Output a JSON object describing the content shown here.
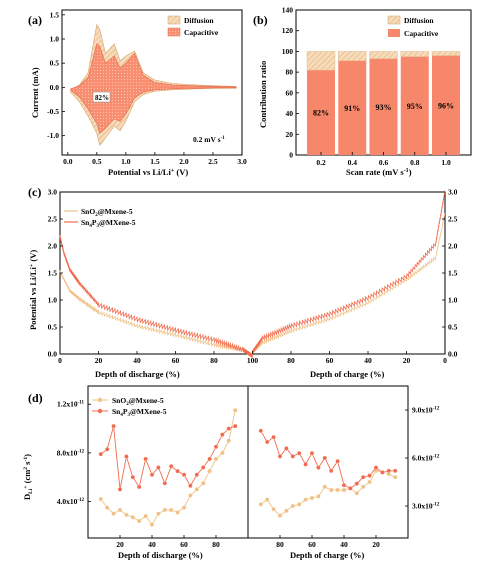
{
  "colors": {
    "diffusion": "#f1cfa6",
    "capacitive": "#f7876a",
    "sno2": "#f0c084",
    "sn4p3": "#f06b4e",
    "axis": "#000000"
  },
  "panels": {
    "a": {
      "label": "(a)",
      "xlabel_main": "Potential vs Li/Li",
      "xlabel_sup": "+",
      "xlabel_tail": " (V)",
      "ylabel": "Current (mA)",
      "legend": [
        "Diffusion",
        "Capacitive"
      ],
      "annotation": "82%",
      "rate_main": "0.2 mV s",
      "rate_sup": "-1",
      "xticks": [
        "0.0",
        "0.5",
        "1.0",
        "1.5",
        "2.0",
        "2.5",
        "3.0"
      ],
      "yticks": [
        "1.5",
        "1.0",
        "0.5",
        "0.0",
        "-0.5",
        "-1.0"
      ]
    },
    "b": {
      "label": "(b)",
      "xlabel_main": "Scan rate (mV s",
      "xlabel_sup": "-1",
      "xlabel_tail": ")",
      "ylabel": "Contribution ratio",
      "legend": [
        "Diffusion",
        "Capacitive"
      ],
      "yticks": [
        "0",
        "20",
        "40",
        "60",
        "80",
        "100",
        "120",
        "140"
      ]
    },
    "c": {
      "label": "(c)",
      "ylabel_main": "Potential vs Li/Li",
      "ylabel_sup": "+",
      "ylabel_tail": " (V)",
      "xlabel_left": "Depth of discharge (%)",
      "xlabel_right": "Depth of charge (%)",
      "legend_sno2_main": "SnO",
      "legend_sno2_sub": "2",
      "legend_sno2_tail": "@Mxene-5",
      "legend_sn4p3_a": "Sn",
      "legend_sn4p3_s1": "4",
      "legend_sn4p3_b": "P",
      "legend_sn4p3_s2": "3",
      "legend_sn4p3_tail": "@MXene-5",
      "yticks": [
        "0.0",
        "0.5",
        "1.0",
        "1.5",
        "2.0",
        "2.5",
        "3.0"
      ],
      "xticks": [
        "0",
        "20",
        "40",
        "60",
        "80",
        "100",
        "80",
        "60",
        "40",
        "20",
        "0"
      ]
    },
    "d": {
      "label": "(d)",
      "ylabel_main": "D",
      "ylabel_sub": "Li",
      "ylabel_sup1": "+",
      "ylabel_tail": " (cm",
      "ylabel_sup2": "2",
      "ylabel_tail2": " s",
      "ylabel_sup3": "-1",
      "ylabel_end": ")",
      "xlabel_left": "Depth of discharge (%)",
      "xlabel_right": "Depth of charge (%)",
      "legend_sno2": "SnO2@Mxene-5",
      "legend_sn4p3": "Sn4P3@MXene-5",
      "yticks_left": [
        "4.0x10",
        "8.0x10",
        "1.2x10"
      ],
      "yticks_left_exp": [
        "-12",
        "-12",
        "-11"
      ],
      "yticks_right": [
        "3.0x10",
        "6.0x10",
        "9.0x10"
      ],
      "yticks_right_exp": [
        "-12",
        "-12",
        "-12"
      ],
      "xticks_left": [
        "20",
        "40",
        "60",
        "80"
      ],
      "xticks_right": [
        "80",
        "60",
        "40",
        "20"
      ]
    }
  },
  "chart_data": [
    {
      "panel": "a",
      "type": "area",
      "x_range": [
        -0.1,
        3.0
      ],
      "y_range": [
        -1.4,
        1.6
      ],
      "series": [
        {
          "name": "Diffusion",
          "x": [
            0.05,
            0.2,
            0.35,
            0.5,
            0.55,
            0.65,
            0.8,
            0.9,
            1.0,
            1.15,
            1.3,
            1.5,
            1.8,
            2.2,
            2.6,
            2.9
          ],
          "upper": [
            -0.05,
            0.05,
            0.3,
            1.3,
            1.2,
            0.7,
            0.9,
            0.55,
            0.65,
            0.75,
            0.3,
            0.15,
            0.08,
            0.05,
            0.03,
            0.02
          ],
          "lower": [
            -0.1,
            -0.3,
            -0.6,
            -0.95,
            -1.2,
            -1.05,
            -0.8,
            -0.9,
            -0.7,
            -0.3,
            -0.15,
            -0.08,
            -0.05,
            -0.03,
            -0.02,
            -0.02
          ]
        },
        {
          "name": "Capacitive",
          "x": [
            0.05,
            0.2,
            0.35,
            0.5,
            0.55,
            0.65,
            0.8,
            0.9,
            1.0,
            1.15,
            1.3,
            1.5,
            1.8,
            2.2,
            2.6,
            2.9
          ],
          "upper": [
            -0.03,
            0.03,
            0.2,
            0.9,
            0.85,
            0.5,
            0.65,
            0.4,
            0.5,
            0.7,
            0.25,
            0.1,
            0.05,
            0.03,
            0.02,
            0.01
          ],
          "lower": [
            -0.06,
            -0.2,
            -0.45,
            -0.75,
            -0.95,
            -0.85,
            -0.65,
            -0.7,
            -0.55,
            -0.22,
            -0.1,
            -0.05,
            -0.03,
            -0.02,
            -0.01,
            -0.01
          ]
        }
      ]
    },
    {
      "panel": "b",
      "type": "bar",
      "categories": [
        "0.2",
        "0.4",
        "0.6",
        "0.8",
        "1.0"
      ],
      "ylim": [
        0,
        140
      ],
      "series": [
        {
          "name": "Capacitive",
          "values": [
            82,
            91,
            93,
            95,
            96
          ]
        },
        {
          "name": "Diffusion",
          "values": [
            18,
            9,
            7,
            5,
            4
          ]
        }
      ],
      "labels": [
        "82%",
        "91%",
        "93%",
        "95%",
        "96%"
      ]
    },
    {
      "panel": "c",
      "type": "line",
      "xlim": [
        0,
        200
      ],
      "ylim": [
        0,
        3.0
      ],
      "series": [
        {
          "name": "SnO2@Mxene-5",
          "x": [
            0,
            5,
            10,
            20,
            40,
            60,
            80,
            95,
            100,
            105,
            120,
            140,
            160,
            180,
            195,
            200
          ],
          "y": [
            1.55,
            1.2,
            1.05,
            0.8,
            0.55,
            0.38,
            0.2,
            0.1,
            0.0,
            0.18,
            0.4,
            0.62,
            0.92,
            1.35,
            1.75,
            2.6
          ]
        },
        {
          "name": "Sn4P3@MXene-5",
          "x": [
            0,
            2,
            5,
            10,
            20,
            40,
            60,
            80,
            95,
            100,
            105,
            120,
            140,
            160,
            180,
            195,
            200
          ],
          "y": [
            2.2,
            1.9,
            1.6,
            1.35,
            0.95,
            0.68,
            0.48,
            0.3,
            0.12,
            0.0,
            0.25,
            0.48,
            0.7,
            1.0,
            1.4,
            2.0,
            3.0
          ]
        }
      ]
    },
    {
      "panel": "d",
      "type": "scatter",
      "series": [
        {
          "name": "SnO2@Mxene-5",
          "side": "discharge",
          "x": [
            8,
            12,
            16,
            20,
            24,
            28,
            32,
            36,
            40,
            44,
            48,
            52,
            56,
            60,
            64,
            68,
            72,
            76,
            80,
            84,
            88,
            92
          ],
          "y": [
            4.2,
            3.5,
            3.0,
            3.3,
            2.9,
            2.7,
            2.4,
            2.8,
            2.1,
            3.0,
            3.3,
            3.3,
            3.1,
            3.5,
            4.5,
            5.0,
            5.5,
            6.5,
            7.5,
            8.0,
            9.0,
            11.5
          ]
        },
        {
          "name": "Sn4P3@MXene-5",
          "side": "discharge",
          "x": [
            8,
            12,
            16,
            20,
            24,
            28,
            32,
            36,
            40,
            44,
            48,
            52,
            56,
            60,
            64,
            68,
            72,
            76,
            80,
            84,
            88,
            92
          ],
          "y": [
            7.9,
            8.3,
            10.2,
            5.0,
            7.7,
            6.0,
            5.2,
            7.5,
            6.2,
            6.8,
            5.5,
            6.9,
            6.5,
            6.2,
            5.3,
            6.2,
            6.8,
            7.5,
            8.5,
            9.5,
            10.0,
            10.2
          ]
        },
        {
          "name": "SnO2@Mxene-5",
          "side": "charge",
          "x": [
            92,
            88,
            84,
            80,
            76,
            72,
            68,
            64,
            60,
            56,
            52,
            48,
            44,
            40,
            36,
            32,
            28,
            24,
            20,
            16,
            12,
            8
          ],
          "y": [
            3.1,
            3.4,
            2.8,
            2.4,
            2.7,
            3.0,
            3.1,
            3.4,
            3.5,
            3.6,
            4.2,
            4.0,
            4.0,
            4.0,
            4.1,
            3.8,
            4.2,
            4.5,
            5.2,
            5.1,
            5.0,
            4.8
          ]
        },
        {
          "name": "Sn4P3@MXene-5",
          "side": "charge",
          "x": [
            92,
            88,
            84,
            80,
            76,
            72,
            68,
            64,
            60,
            56,
            52,
            48,
            44,
            40,
            36,
            32,
            28,
            24,
            20,
            16,
            12,
            8
          ],
          "y": [
            7.7,
            7.0,
            7.3,
            6.1,
            6.6,
            6.1,
            6.3,
            5.6,
            6.3,
            5.4,
            6.0,
            5.2,
            5.8,
            4.3,
            4.1,
            4.4,
            4.8,
            4.9,
            5.4,
            5.1,
            5.2,
            5.2
          ]
        }
      ]
    }
  ]
}
